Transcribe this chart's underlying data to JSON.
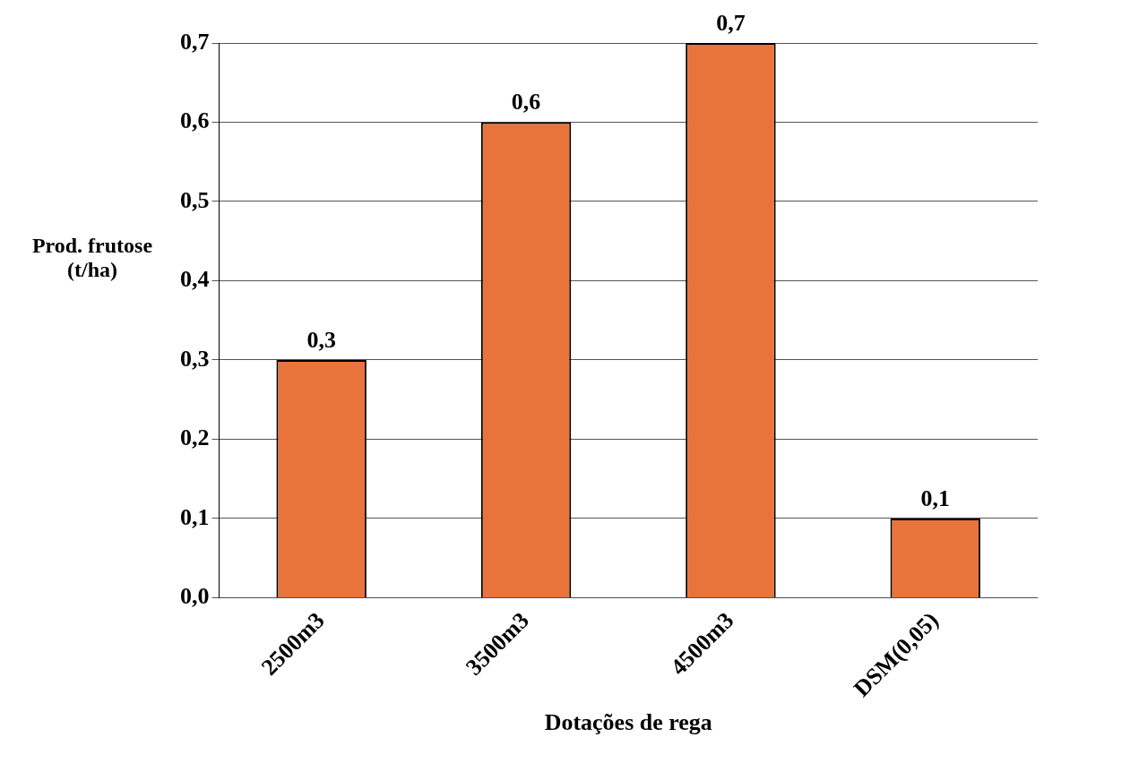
{
  "chart_data": {
    "type": "bar",
    "xlabel": "Dotações de rega",
    "ylabel": "Prod. frutose (t/ha)",
    "categories": [
      "2500m3",
      "3500m3",
      "4500m3",
      "DSM(0,05)"
    ],
    "series": [
      {
        "color": "#e8743c",
        "values": [
          0.3,
          0.6,
          0.7,
          0.1
        ],
        "value_labels": [
          "0,3",
          "0,6",
          "0,7",
          "0,1"
        ]
      }
    ],
    "ylim": [
      0,
      0.7
    ],
    "yticks": [
      {
        "value": 0,
        "label": "0,0"
      },
      {
        "value": 0.1,
        "label": "0,1"
      },
      {
        "value": 0.2,
        "label": "0,2"
      },
      {
        "value": 0.3,
        "label": "0,3"
      },
      {
        "value": 0.4,
        "label": "0,4"
      },
      {
        "value": 0.5,
        "label": "0,5"
      },
      {
        "value": 0.6,
        "label": "0,6"
      },
      {
        "value": 0.7,
        "label": "0,7"
      }
    ],
    "grid": "y",
    "legend": false
  }
}
